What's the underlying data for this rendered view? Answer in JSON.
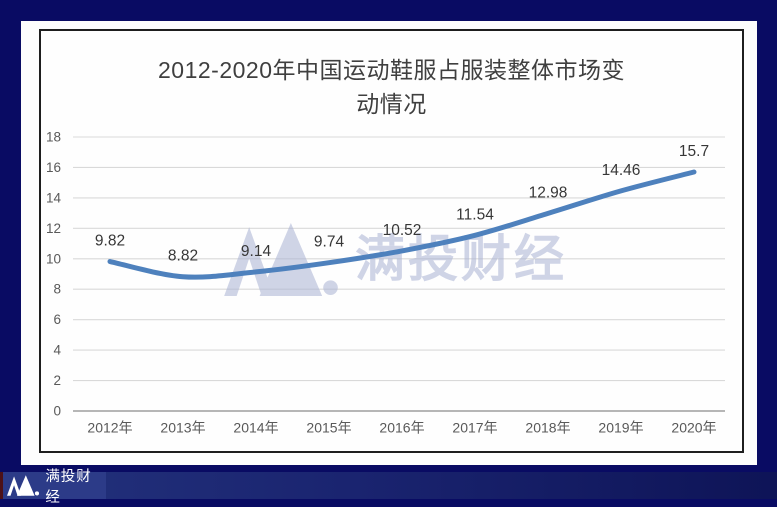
{
  "page": {
    "title_lines": [
      "2012-2020年中国运动鞋服占服装整体市场变",
      "动情况"
    ]
  },
  "chart_data": {
    "type": "line",
    "title": "2012-2020年中国运动鞋服占服装整体市场变动情况",
    "categories": [
      "2012年",
      "2013年",
      "2014年",
      "2015年",
      "2016年",
      "2017年",
      "2018年",
      "2019年",
      "2020年"
    ],
    "values": [
      9.82,
      8.82,
      9.14,
      9.74,
      10.52,
      11.54,
      12.98,
      14.46,
      15.7
    ],
    "data_labels": [
      "9.82",
      "8.82",
      "9.14",
      "9.74",
      "10.52",
      "11.54",
      "12.98",
      "14.46",
      "15.7"
    ],
    "ylim": [
      0,
      18
    ],
    "yticks": [
      18,
      16,
      14,
      12,
      10,
      8,
      6,
      4,
      2,
      0
    ],
    "grid": true,
    "legend": "none",
    "smooth": true,
    "line_color": "#4e81bd",
    "label_color": "#373737",
    "tick_color": "#595959",
    "grid_color": "#d9d9d9",
    "axis_color": "#ababab"
  },
  "watermark": {
    "text": "满投财经",
    "color": "#aab2d4"
  },
  "footer": {
    "brand": "满投财经",
    "bar_color": "#23327c"
  }
}
